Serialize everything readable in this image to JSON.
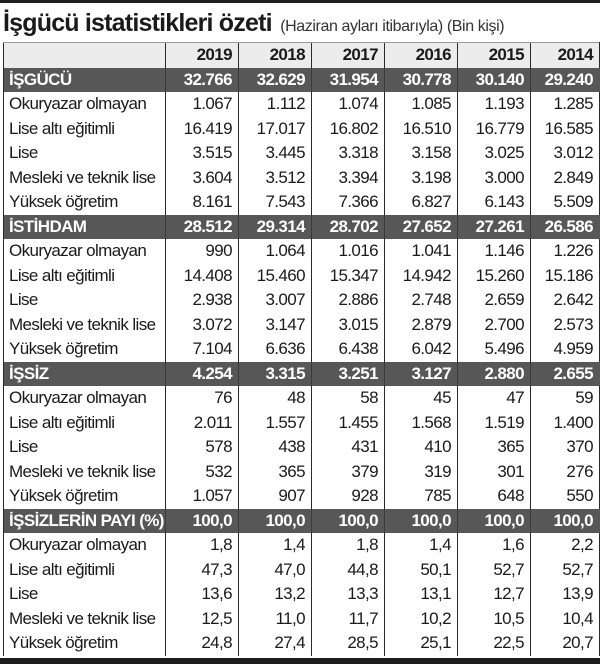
{
  "title": {
    "main": "İşgücü istatistikleri özeti",
    "subtitle": "(Haziran ayları itibarıyla) (Bin kişi)"
  },
  "table": {
    "years": [
      "2019",
      "2018",
      "2017",
      "2016",
      "2015",
      "2014"
    ],
    "sections": [
      {
        "label": "İŞGÜCÜ",
        "totals": [
          "32.766",
          "32.629",
          "31.954",
          "30.778",
          "30.140",
          "29.240"
        ],
        "rows": [
          {
            "label": "Okuryazar olmayan",
            "values": [
              "1.067",
              "1.112",
              "1.074",
              "1.085",
              "1.193",
              "1.285"
            ]
          },
          {
            "label": "Lise altı eğitimli",
            "values": [
              "16.419",
              "17.017",
              "16.802",
              "16.510",
              "16.779",
              "16.585"
            ]
          },
          {
            "label": "Lise",
            "values": [
              "3.515",
              "3.445",
              "3.318",
              "3.158",
              "3.025",
              "3.012"
            ]
          },
          {
            "label": "Mesleki ve teknik lise",
            "values": [
              "3.604",
              "3.512",
              "3.394",
              "3.198",
              "3.000",
              "2.849"
            ]
          },
          {
            "label": "Yüksek öğretim",
            "values": [
              "8.161",
              "7.543",
              "7.366",
              "6.827",
              "6.143",
              "5.509"
            ]
          }
        ]
      },
      {
        "label": "İSTİHDAM",
        "totals": [
          "28.512",
          "29.314",
          "28.702",
          "27.652",
          "27.261",
          "26.586"
        ],
        "rows": [
          {
            "label": "Okuryazar olmayan",
            "values": [
              "990",
              "1.064",
              "1.016",
              "1.041",
              "1.146",
              "1.226"
            ]
          },
          {
            "label": "Lise altı eğitimli",
            "values": [
              "14.408",
              "15.460",
              "15.347",
              "14.942",
              "15.260",
              "15.186"
            ]
          },
          {
            "label": "Lise",
            "values": [
              "2.938",
              "3.007",
              "2.886",
              "2.748",
              "2.659",
              "2.642"
            ]
          },
          {
            "label": "Mesleki ve teknik lise",
            "values": [
              "3.072",
              "3.147",
              "3.015",
              "2.879",
              "2.700",
              "2.573"
            ]
          },
          {
            "label": "Yüksek öğretim",
            "values": [
              "7.104",
              "6.636",
              "6.438",
              "6.042",
              "5.496",
              "4.959"
            ]
          }
        ]
      },
      {
        "label": "İŞSİZ",
        "totals": [
          "4.254",
          "3.315",
          "3.251",
          "3.127",
          "2.880",
          "2.655"
        ],
        "rows": [
          {
            "label": "Okuryazar olmayan",
            "values": [
              "76",
              "48",
              "58",
              "45",
              "47",
              "59"
            ]
          },
          {
            "label": "Lise altı eğitimli",
            "values": [
              "2.011",
              "1.557",
              "1.455",
              "1.568",
              "1.519",
              "1.400"
            ]
          },
          {
            "label": "Lise",
            "values": [
              "578",
              "438",
              "431",
              "410",
              "365",
              "370"
            ]
          },
          {
            "label": "Mesleki ve teknik lise",
            "values": [
              "532",
              "365",
              "379",
              "319",
              "301",
              "276"
            ]
          },
          {
            "label": "Yüksek öğretim",
            "values": [
              "1.057",
              "907",
              "928",
              "785",
              "648",
              "550"
            ]
          }
        ]
      },
      {
        "label": "İŞSİZLERİN PAYI (%)",
        "totals": [
          "100,0",
          "100,0",
          "100,0",
          "100,0",
          "100,0",
          "100,0"
        ],
        "rows": [
          {
            "label": "Okuryazar olmayan",
            "values": [
              "1,8",
              "1,4",
              "1,8",
              "1,4",
              "1,6",
              "2,2"
            ]
          },
          {
            "label": "Lise altı eğitimli",
            "values": [
              "47,3",
              "47,0",
              "44,8",
              "50,1",
              "52,7",
              "52,7"
            ]
          },
          {
            "label": "Lise",
            "values": [
              "13,6",
              "13,2",
              "13,3",
              "13,1",
              "12,7",
              "13,9"
            ]
          },
          {
            "label": "Mesleki ve teknik lise",
            "values": [
              "12,5",
              "11,0",
              "11,7",
              "10,2",
              "10,5",
              "10,4"
            ]
          },
          {
            "label": "Yüksek öğretim",
            "values": [
              "24,8",
              "27,4",
              "28,5",
              "25,1",
              "22,5",
              "20,7"
            ]
          }
        ]
      }
    ]
  },
  "colors": {
    "header_bg": "#ececec",
    "section_bg": "#575757",
    "section_text": "#ffffff",
    "rule": "#1e1e1e"
  }
}
